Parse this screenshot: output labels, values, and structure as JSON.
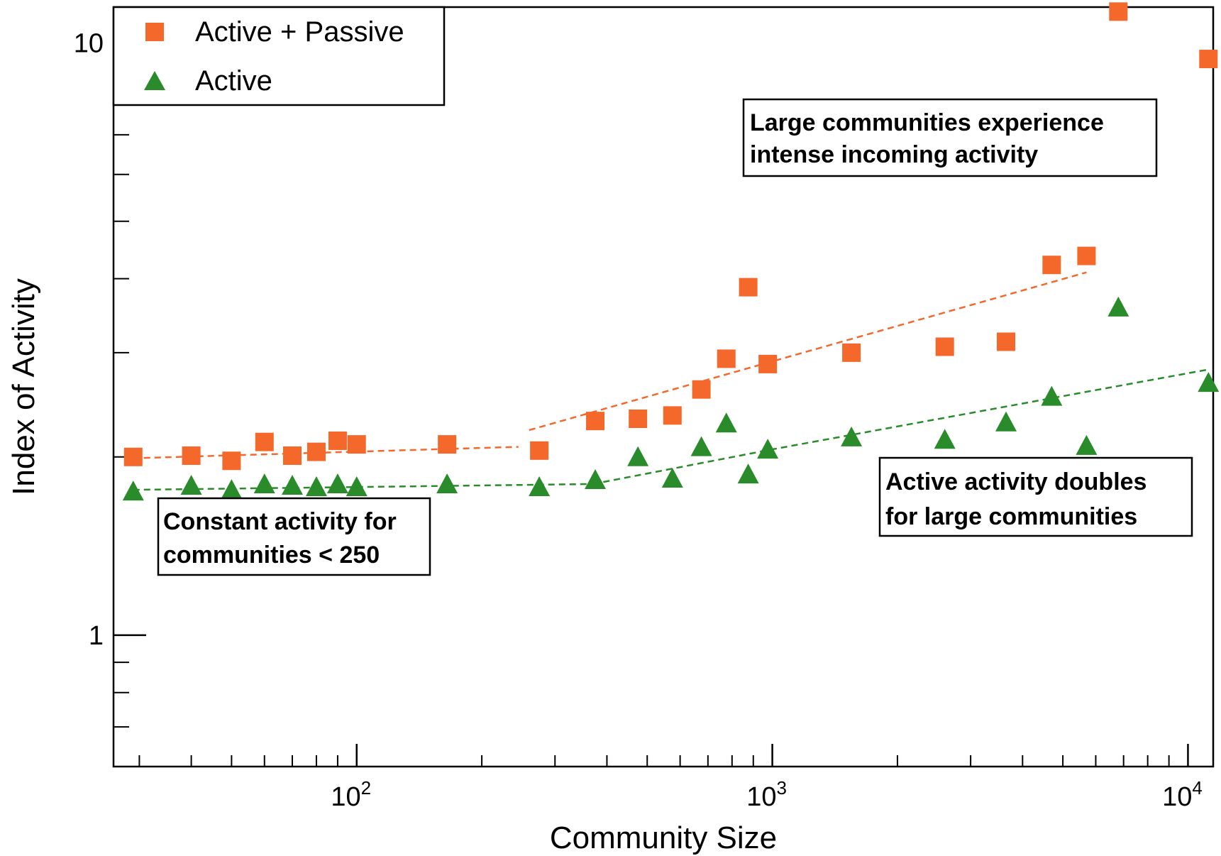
{
  "chart_data": {
    "type": "scatter",
    "xlabel": "Community Size",
    "ylabel": "Index of Activity",
    "x_scale": "log",
    "y_scale": "log",
    "xlim": [
      26,
      11500
    ],
    "ylim": [
      0.6,
      11.5
    ],
    "x_ticks": [
      {
        "value": 100,
        "base": "10",
        "exp": "2"
      },
      {
        "value": 1000,
        "base": "10",
        "exp": "3"
      },
      {
        "value": 10000,
        "base": "10",
        "exp": "4"
      }
    ],
    "y_ticks": [
      {
        "value": 1,
        "label": "1"
      },
      {
        "value": 10,
        "label": "10"
      }
    ],
    "legend_position": "top-left",
    "series": [
      {
        "name": "Active + Passive",
        "marker": "square",
        "color": "#f4692b",
        "points": [
          {
            "x": 29,
            "y": 2.0
          },
          {
            "x": 40,
            "y": 2.01
          },
          {
            "x": 50,
            "y": 1.97
          },
          {
            "x": 60,
            "y": 2.12
          },
          {
            "x": 70,
            "y": 2.01
          },
          {
            "x": 80,
            "y": 2.04
          },
          {
            "x": 90,
            "y": 2.13
          },
          {
            "x": 100,
            "y": 2.1
          },
          {
            "x": 165,
            "y": 2.1
          },
          {
            "x": 275,
            "y": 2.05
          },
          {
            "x": 375,
            "y": 2.3
          },
          {
            "x": 475,
            "y": 2.32
          },
          {
            "x": 575,
            "y": 2.35
          },
          {
            "x": 675,
            "y": 2.6
          },
          {
            "x": 775,
            "y": 2.93
          },
          {
            "x": 875,
            "y": 3.87
          },
          {
            "x": 975,
            "y": 2.87
          },
          {
            "x": 1550,
            "y": 3.0
          },
          {
            "x": 2600,
            "y": 3.07
          },
          {
            "x": 3650,
            "y": 3.13
          },
          {
            "x": 4700,
            "y": 4.22
          },
          {
            "x": 5700,
            "y": 4.37
          },
          {
            "x": 6800,
            "y": 11.3
          },
          {
            "x": 11200,
            "y": 9.4
          }
        ]
      },
      {
        "name": "Active",
        "marker": "triangle",
        "color": "#2a8b2a",
        "points": [
          {
            "x": 29,
            "y": 1.75
          },
          {
            "x": 40,
            "y": 1.79
          },
          {
            "x": 50,
            "y": 1.76
          },
          {
            "x": 60,
            "y": 1.8
          },
          {
            "x": 70,
            "y": 1.79
          },
          {
            "x": 80,
            "y": 1.78
          },
          {
            "x": 90,
            "y": 1.8
          },
          {
            "x": 100,
            "y": 1.78
          },
          {
            "x": 165,
            "y": 1.8
          },
          {
            "x": 275,
            "y": 1.78
          },
          {
            "x": 375,
            "y": 1.83
          },
          {
            "x": 475,
            "y": 2.0
          },
          {
            "x": 575,
            "y": 1.84
          },
          {
            "x": 675,
            "y": 2.08
          },
          {
            "x": 775,
            "y": 2.28
          },
          {
            "x": 875,
            "y": 1.87
          },
          {
            "x": 975,
            "y": 2.06
          },
          {
            "x": 1550,
            "y": 2.16
          },
          {
            "x": 2600,
            "y": 2.14
          },
          {
            "x": 3650,
            "y": 2.29
          },
          {
            "x": 4700,
            "y": 2.53
          },
          {
            "x": 5700,
            "y": 2.09
          },
          {
            "x": 6800,
            "y": 3.58
          },
          {
            "x": 11200,
            "y": 2.67
          }
        ]
      }
    ],
    "trend_lines": [
      {
        "series": "Active + Passive",
        "color": "#f4692b",
        "points": [
          {
            "x": 29,
            "y": 1.99
          },
          {
            "x": 245,
            "y": 2.08
          }
        ]
      },
      {
        "series": "Active + Passive",
        "color": "#f4692b",
        "points": [
          {
            "x": 260,
            "y": 2.22
          },
          {
            "x": 1000,
            "y": 2.9
          },
          {
            "x": 5700,
            "y": 4.1
          }
        ]
      },
      {
        "series": "Active",
        "color": "#2a8b2a",
        "points": [
          {
            "x": 29,
            "y": 1.76
          },
          {
            "x": 370,
            "y": 1.8
          }
        ]
      },
      {
        "series": "Active",
        "color": "#2a8b2a",
        "points": [
          {
            "x": 370,
            "y": 1.8
          },
          {
            "x": 1000,
            "y": 2.06
          },
          {
            "x": 11200,
            "y": 2.81
          }
        ]
      }
    ],
    "annotations": [
      {
        "id": "large",
        "lines": [
          "Large communities experience",
          "intense incoming activity"
        ]
      },
      {
        "id": "doubles",
        "lines": [
          "Active activity doubles",
          "for large communities"
        ]
      },
      {
        "id": "constant",
        "lines": [
          "Constant activity for",
          "communities < 250"
        ]
      }
    ]
  }
}
